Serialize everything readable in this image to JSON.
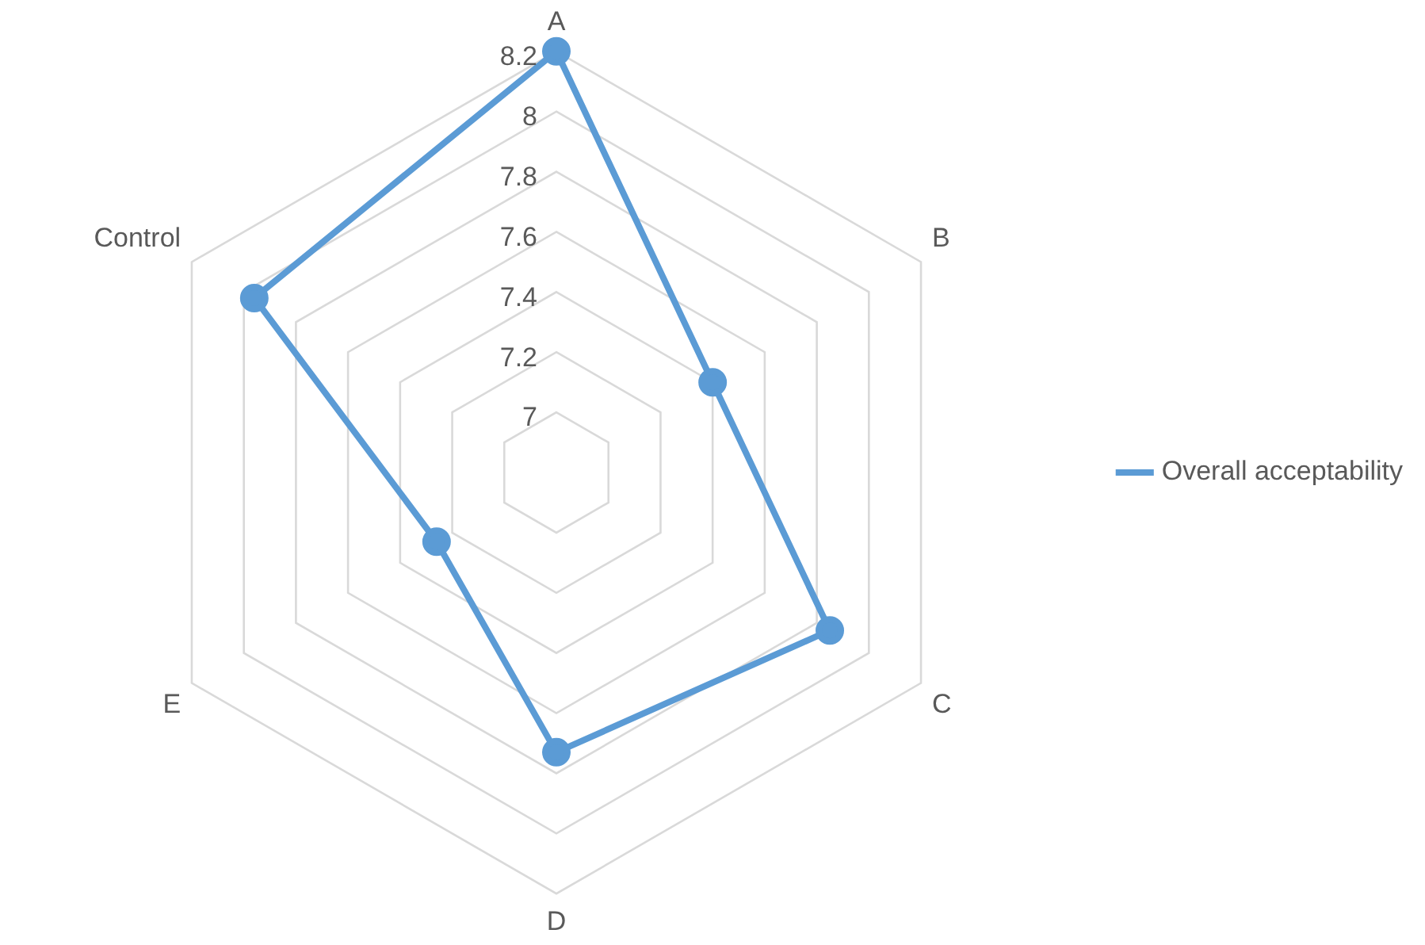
{
  "chart_data": {
    "type": "radar",
    "categories": [
      "A",
      "B",
      "C",
      "D",
      "E",
      "Control"
    ],
    "series": [
      {
        "name": "Overall acceptability",
        "color": "#5b9bd5",
        "values": [
          8.2,
          7.4,
          7.85,
          7.73,
          7.26,
          7.96
        ]
      }
    ],
    "ylim": [
      6.8,
      8.2
    ],
    "yticks": [
      7,
      7.2,
      7.4,
      7.6,
      7.8,
      8,
      8.2
    ],
    "grid": true,
    "legend": "right",
    "marker": "circle"
  }
}
